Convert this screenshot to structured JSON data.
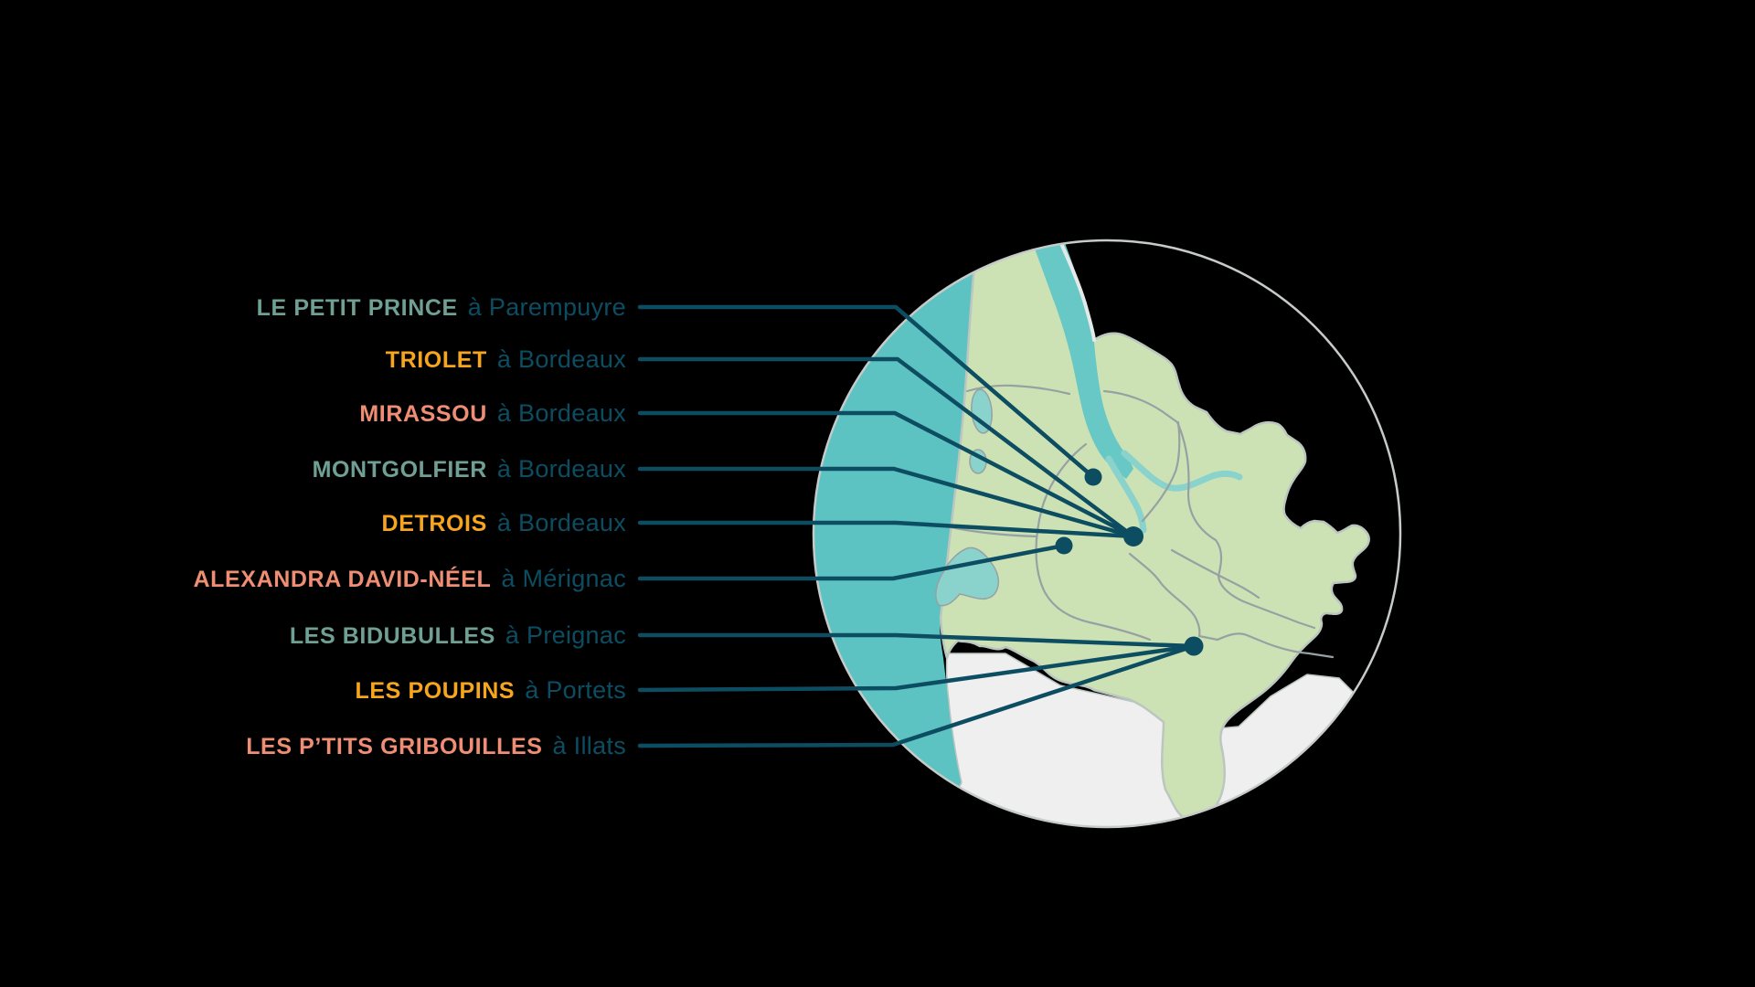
{
  "palette": {
    "background": "#000000",
    "ink": "#0D4D62",
    "sage": "#6FA093",
    "orange": "#F8A51E",
    "salmon": "#EF8E74",
    "ocean": "#5CC2C2",
    "estuary": "#68C8C5",
    "water_light": "#8AD2CC",
    "land": "#CDE2B4",
    "outside": "#EEEFEE",
    "boundary": "#97A1A3",
    "land_edge": "#BCC6C0",
    "rim": "#C6CBCA"
  },
  "callouts": [
    {
      "name": "LE PETIT PRINCE",
      "preposition": "à",
      "place": "Parempuyre",
      "color": "sage",
      "map_dot": "parempuyre"
    },
    {
      "name": "TRIOLET",
      "preposition": "à",
      "place": "Bordeaux",
      "color": "orange",
      "map_dot": "bordeaux"
    },
    {
      "name": "MIRASSOU",
      "preposition": "à",
      "place": "Bordeaux",
      "color": "salmon",
      "map_dot": "bordeaux"
    },
    {
      "name": "MONTGOLFIER",
      "preposition": "à",
      "place": "Bordeaux",
      "color": "sage",
      "map_dot": "bordeaux"
    },
    {
      "name": "DETROIS",
      "preposition": "à",
      "place": "Bordeaux",
      "color": "orange",
      "map_dot": "bordeaux"
    },
    {
      "name": "ALEXANDRA DAVID-NÉEL",
      "preposition": "à",
      "place": "Mérignac",
      "color": "salmon",
      "map_dot": "merignac"
    },
    {
      "name": "LES BIDUBULLES",
      "preposition": "à",
      "place": "Preignac",
      "color": "sage",
      "map_dot": "preignac-portets-illats"
    },
    {
      "name": "LES POUPINS",
      "preposition": "à",
      "place": "Portets",
      "color": "orange",
      "map_dot": "preignac-portets-illats"
    },
    {
      "name": "LES P’TITS GRIBOUILLES",
      "preposition": "à",
      "place": "Illats",
      "color": "salmon",
      "map_dot": "preignac-portets-illats"
    }
  ],
  "map_dots": [
    "parempuyre",
    "bordeaux",
    "merignac",
    "preignac-portets-illats"
  ]
}
